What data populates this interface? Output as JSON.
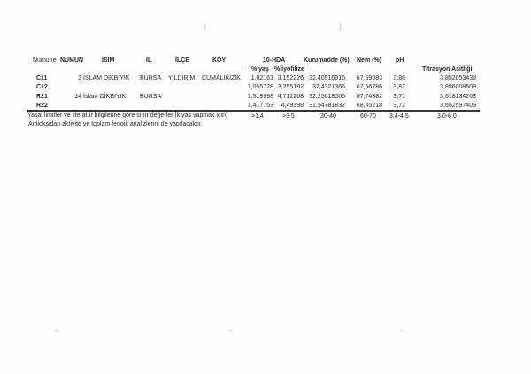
{
  "headers": {
    "numune": "Numune",
    "numun": "NUMUN",
    "isim": "İSİM",
    "il": "İL",
    "ilce": "İLÇE",
    "koy": "KÖY",
    "hda": "10-HDA",
    "yas": "% yaş",
    "liyofilize": "%liyofilize",
    "kurumadde": "Kurumadde (%)",
    "nem": "Nem (%)",
    "ph": "pH",
    "titrasyon": "Titrasyon Asitliği"
  },
  "rows": [
    {
      "numune": "C11",
      "numun": "3",
      "isim": "İSLAM DİKBIYIK",
      "il": "BURSA",
      "ilce": "YILDIRIM",
      "koy": "CUMALIKIZIK",
      "yas": "1,02161",
      "liyofilize": "3,152226",
      "kurumadde": "32,40916916",
      "nem": "67,59083",
      "ph": "3,86",
      "titrasyon": "3,852053439"
    },
    {
      "numune": "C12",
      "numun": "",
      "isim": "",
      "il": "",
      "ilce": "",
      "koy": "",
      "yas": "1,055728",
      "liyofilize": "3,255192",
      "kurumadde": "32,4321366",
      "nem": "67,56786",
      "ph": "3,87",
      "titrasyon": "3,896008609"
    },
    {
      "numune": "R21",
      "numun": "14",
      "isim": "İslam DİKBIYIK",
      "il": "BURSA",
      "ilce": "",
      "koy": "",
      "yas": "1,519998",
      "liyofilize": "4,712268",
      "kurumadde": "32,25618065",
      "nem": "67,74382",
      "ph": "3,71",
      "titrasyon": "3,618134263"
    },
    {
      "numune": "R22",
      "numun": "",
      "isim": "",
      "il": "",
      "ilce": "",
      "koy": "",
      "yas": "1,417753",
      "liyofilize": "4,49398",
      "kurumadde": "31,54781832",
      "nem": "68,45218",
      "ph": "3,72",
      "titrasyon": "3,652597403"
    }
  ],
  "limits": {
    "label": "Yasal limitler ve literatür bilgilerine göre sınır değerler (kıyas yapmak için)",
    "yas": ">1,4",
    "liyofilize": ">3,5",
    "kurumadde": "30-40",
    "nem": "60-70",
    "ph": "3,4-4,5",
    "titrasyon": "3,0-6,0"
  },
  "note": "Antioksidan aktivite ve toplam fenoik analizlerini de yapılacaktır."
}
